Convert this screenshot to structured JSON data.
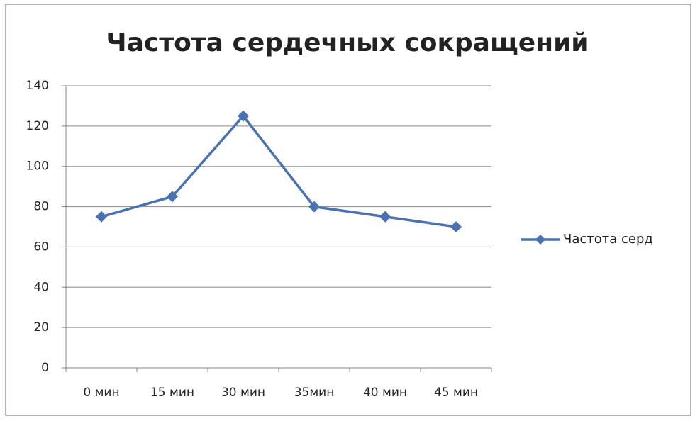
{
  "chart_data": {
    "type": "line",
    "title": "Частота сердечных сокращений",
    "categories": [
      "0 мин",
      "15 мин",
      "30 мин",
      "35мин",
      "40 мин",
      "45 мин"
    ],
    "series": [
      {
        "name": "Частота серд",
        "color": "#4a72b0",
        "values": [
          75,
          85,
          125,
          80,
          75,
          70
        ]
      }
    ],
    "ylim": [
      0,
      140
    ],
    "yticks": [
      0,
      20,
      40,
      60,
      80,
      100,
      120,
      140
    ],
    "grid": true,
    "legend": "right"
  }
}
